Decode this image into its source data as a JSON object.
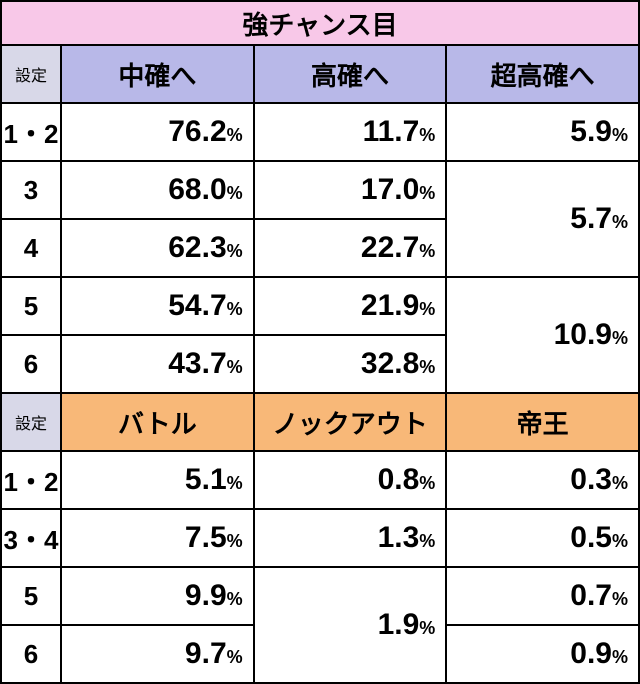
{
  "title": "強チャンス目",
  "settei_label": "設定",
  "headers1": [
    "中確へ",
    "高確へ",
    "超高確へ"
  ],
  "headers2": [
    "バトル",
    "ノックアウト",
    "帝王"
  ],
  "colors": {
    "title_bg": "#f8c8e8",
    "settei_bg": "#d8d8e8",
    "purple_bg": "#b8b8e8",
    "orange_bg": "#f8b878"
  },
  "rows1": [
    {
      "label": "1・2",
      "v1": "76.2",
      "v2": "11.7",
      "v3": "5.9",
      "v3_rowspan": 1
    },
    {
      "label": "3",
      "v1": "68.0",
      "v2": "17.0",
      "v3": "5.7",
      "v3_rowspan": 2
    },
    {
      "label": "4",
      "v1": "62.3",
      "v2": "22.7"
    },
    {
      "label": "5",
      "v1": "54.7",
      "v2": "21.9",
      "v3": "10.9",
      "v3_rowspan": 2
    },
    {
      "label": "6",
      "v1": "43.7",
      "v2": "32.8"
    }
  ],
  "rows2": [
    {
      "label": "1・2",
      "v1": "5.1",
      "v2": "0.8",
      "v2_rowspan": 1,
      "v3": "0.3"
    },
    {
      "label": "3・4",
      "v1": "7.5",
      "v2": "1.3",
      "v2_rowspan": 1,
      "v3": "0.5"
    },
    {
      "label": "5",
      "v1": "9.9",
      "v2": "1.9",
      "v2_rowspan": 2,
      "v3": "0.7"
    },
    {
      "label": "6",
      "v1": "9.7",
      "v3": "0.9"
    }
  ],
  "pct_symbol": "%"
}
